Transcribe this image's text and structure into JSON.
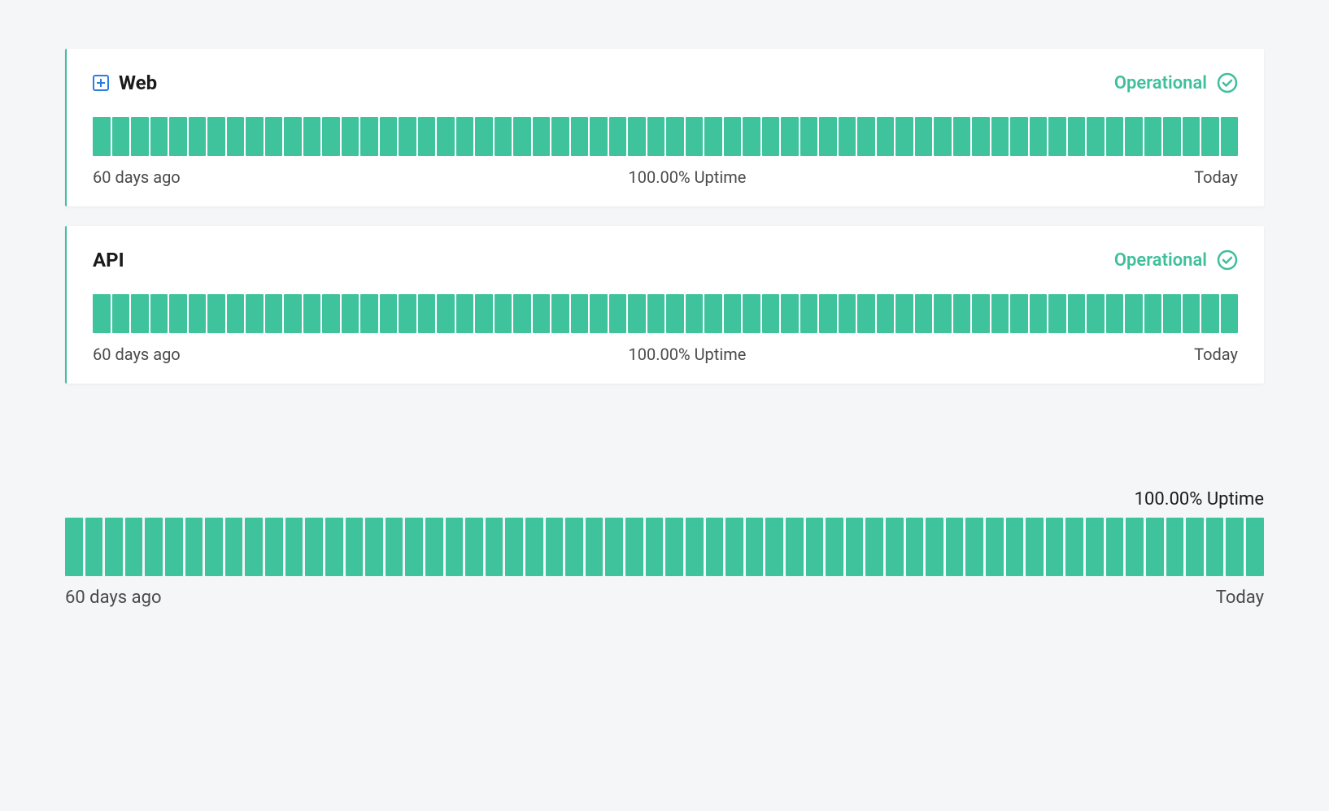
{
  "colors": {
    "background": "#f5f6f7",
    "card_bg": "#ffffff",
    "accent": "#3fbf9c",
    "bar_color": "#3fc39c",
    "expand_border": "#2a7de1",
    "text_primary": "#1a1a1a",
    "text_secondary": "#4a4a4a",
    "status_text": "#3fbf9c"
  },
  "timeline": {
    "bar_count": 60,
    "bar_height_card": 48,
    "bar_height_standalone": 72,
    "bar_gap": 2
  },
  "services": [
    {
      "name": "Web",
      "expandable": true,
      "status": "Operational",
      "uptime": "100.00% Uptime",
      "range_start": "60 days ago",
      "range_end": "Today"
    },
    {
      "name": "API",
      "expandable": false,
      "status": "Operational",
      "uptime": "100.00% Uptime",
      "range_start": "60 days ago",
      "range_end": "Today"
    }
  ],
  "standalone": {
    "uptime": "100.00% Uptime",
    "range_start": "60 days ago",
    "range_end": "Today"
  }
}
